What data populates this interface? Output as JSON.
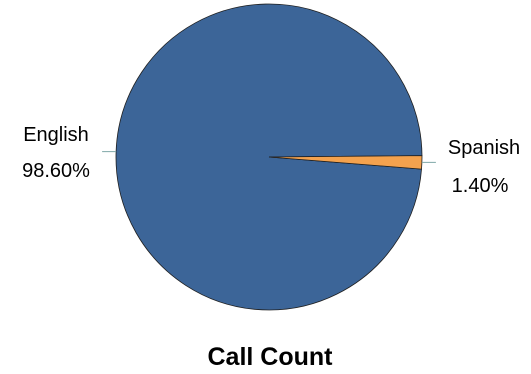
{
  "chart_data": {
    "type": "pie",
    "title": "Call Count",
    "slices": [
      {
        "label": "English",
        "value": 98.6,
        "display": "98.60%",
        "color": "#3C6598"
      },
      {
        "label": "Spanish",
        "value": 1.4,
        "display": "1.40%",
        "color": "#F4A24E"
      }
    ],
    "legend": "none",
    "label_position": "outside-with-leaders"
  }
}
